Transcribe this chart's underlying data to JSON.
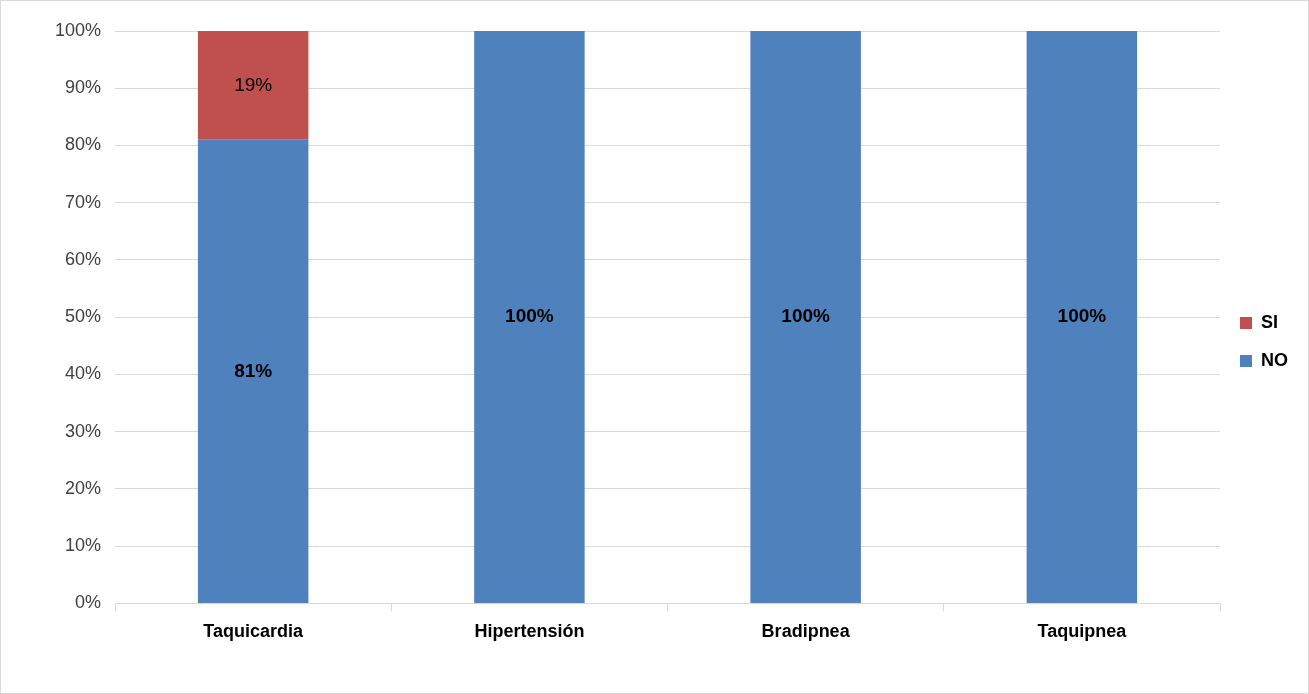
{
  "chart_data": {
    "type": "bar",
    "stacked": true,
    "categories": [
      "Taquicardia",
      "Hipertensión",
      "Bradipnea",
      "Taquipnea"
    ],
    "series": [
      {
        "name": "NO",
        "color": "#4f81bd",
        "values": [
          81,
          100,
          100,
          100
        ],
        "value_labels": [
          "81%",
          "100%",
          "100%",
          "100%"
        ]
      },
      {
        "name": "SI",
        "color": "#c0504d",
        "values": [
          19,
          0,
          0,
          0
        ],
        "value_labels": [
          "19%",
          null,
          null,
          null
        ]
      }
    ],
    "ylim": [
      0,
      100
    ],
    "yticks": [
      {
        "value": 0,
        "label": "0%"
      },
      {
        "value": 10,
        "label": "10%"
      },
      {
        "value": 20,
        "label": "20%"
      },
      {
        "value": 30,
        "label": "30%"
      },
      {
        "value": 40,
        "label": "40%"
      },
      {
        "value": 50,
        "label": "50%"
      },
      {
        "value": 60,
        "label": "60%"
      },
      {
        "value": 70,
        "label": "70%"
      },
      {
        "value": 80,
        "label": "80%"
      },
      {
        "value": 90,
        "label": "90%"
      },
      {
        "value": 100,
        "label": "100%"
      }
    ],
    "grid": "y",
    "legend": "right"
  }
}
